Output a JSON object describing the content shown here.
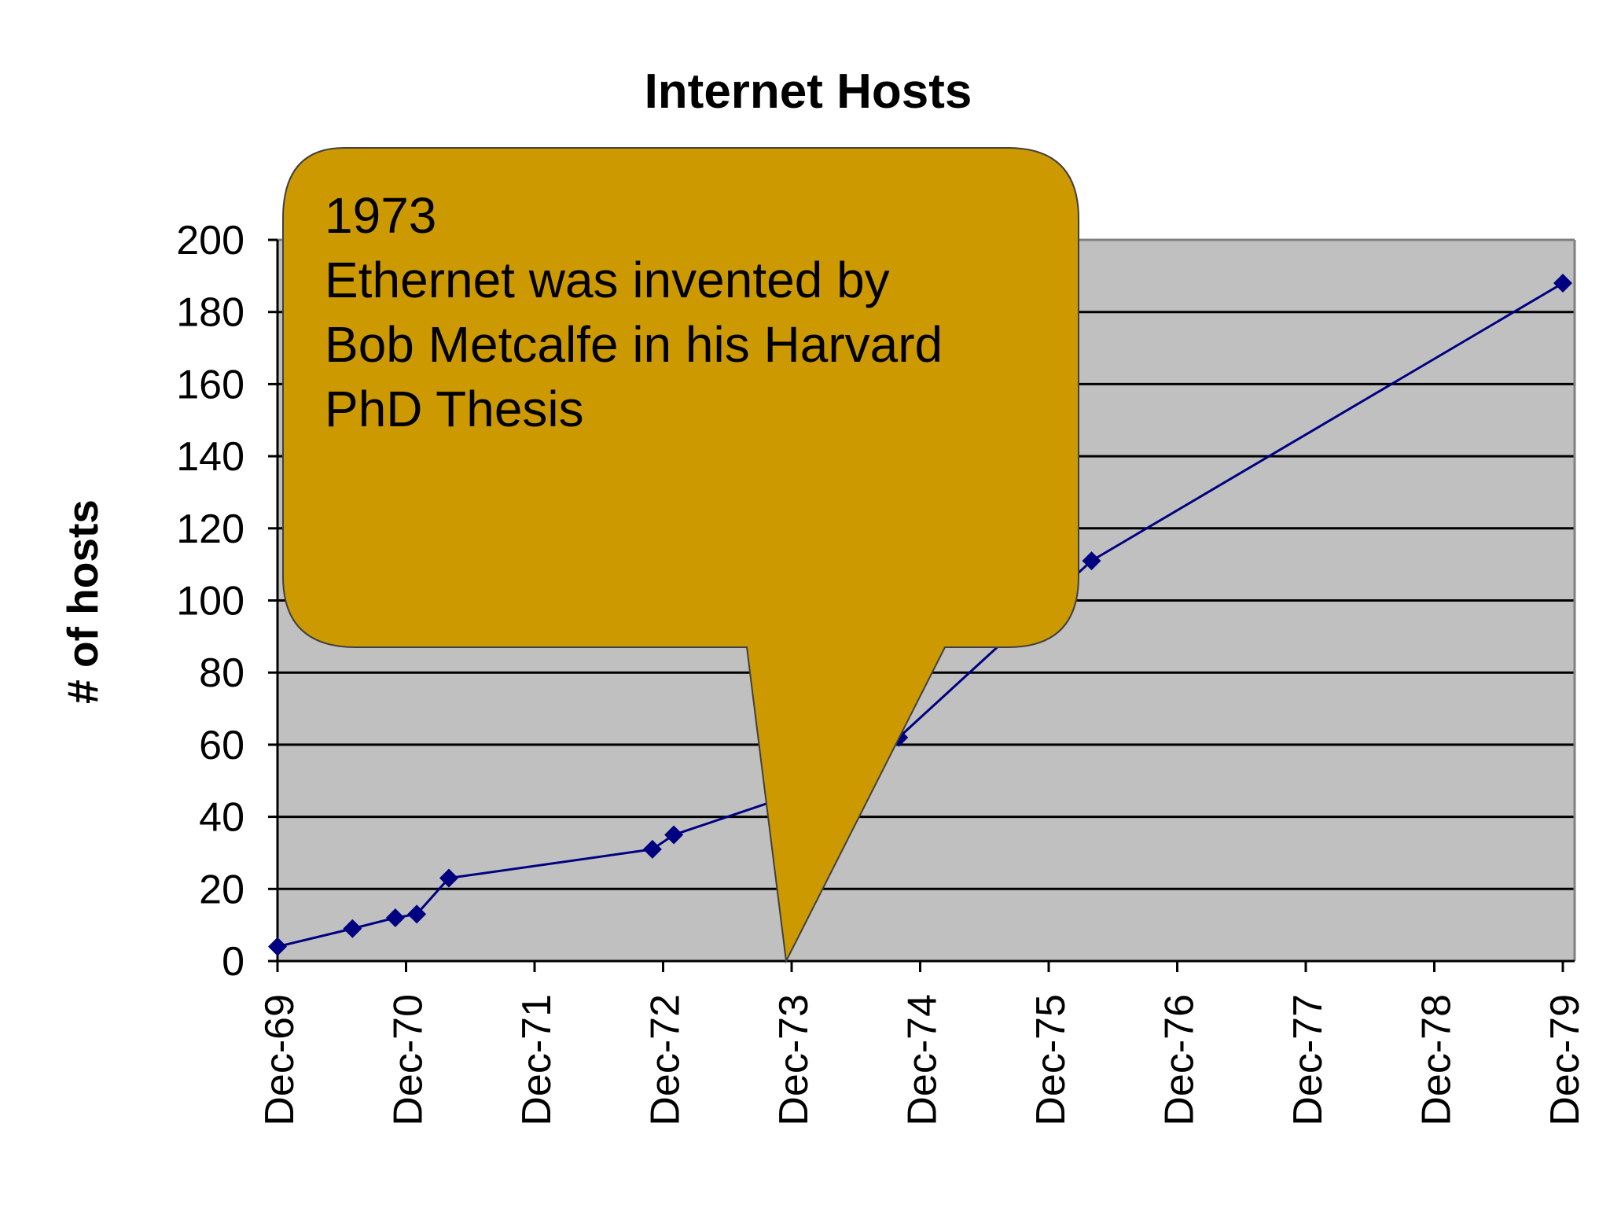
{
  "chart_data": {
    "type": "line",
    "title": "Internet Hosts",
    "xlabel": "",
    "ylabel": "# of hosts",
    "ylim": [
      0,
      200
    ],
    "yticks": [
      0,
      20,
      40,
      60,
      80,
      100,
      120,
      140,
      160,
      180,
      200
    ],
    "xlim": [
      "Dec-69",
      "Dec-79"
    ],
    "xticks": [
      "Dec-69",
      "Dec-70",
      "Dec-71",
      "Dec-72",
      "Dec-73",
      "Dec-74",
      "Dec-75",
      "Dec-76",
      "Dec-77",
      "Dec-78",
      "Dec-79"
    ],
    "grid": "horizontal",
    "legend": "none",
    "series": [
      {
        "x": [
          "1969-12",
          "1970-07",
          "1970-11",
          "1971-01",
          "1971-04",
          "1972-11",
          "1973-01",
          "1973-12",
          "1974-10",
          "1976-04",
          "1979-12"
        ],
        "values": [
          4,
          9,
          12,
          13,
          23,
          31,
          35,
          46,
          62,
          111,
          188
        ],
        "color": "#000080",
        "marker": "diamond"
      }
    ],
    "annotations": [
      {
        "lines": [
          "1973",
          "Ethernet was invented by",
          "Bob Metcalfe  in his Harvard",
          "PhD Thesis"
        ],
        "anchor_x": "Dec-73",
        "anchor_y": 0
      }
    ]
  },
  "colors": {
    "plot_background": "#c0c0c0",
    "gridline": "#000000",
    "line": "#000080",
    "callout_fill": "#cc9900",
    "callout_stroke": "#404040"
  }
}
